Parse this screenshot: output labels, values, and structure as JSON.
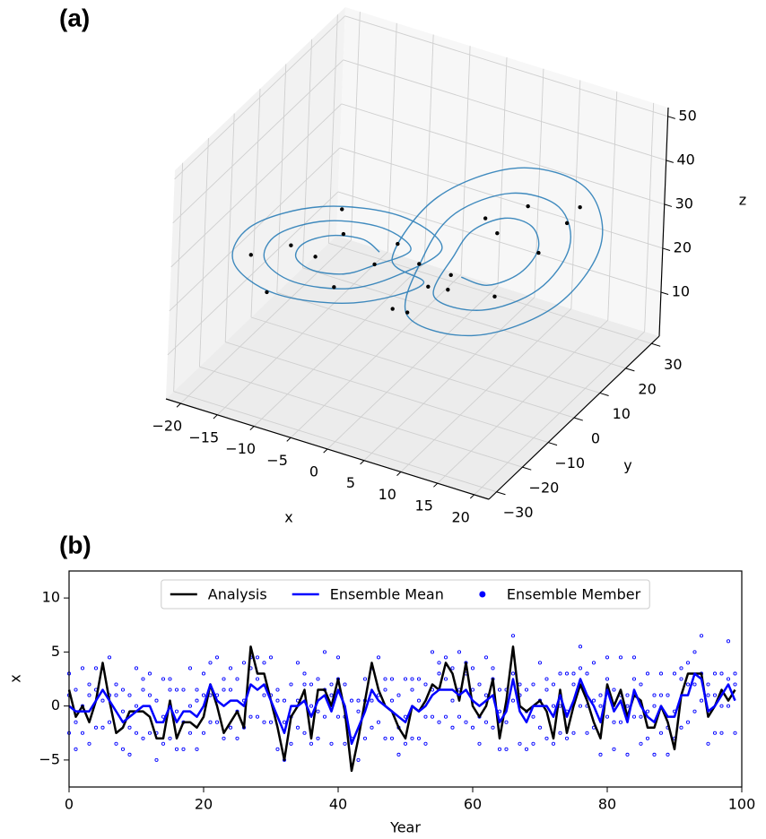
{
  "chart_data": [
    {
      "type": "3d",
      "label": "(a)",
      "xlabel": "x",
      "ylabel": "y",
      "zlabel": "z",
      "xlim": [
        -22,
        22
      ],
      "ylim": [
        -33,
        33
      ],
      "zlim": [
        0,
        52
      ],
      "xticks": [
        {
          "value": -20,
          "label": "−20"
        },
        {
          "value": -15,
          "label": "−15"
        },
        {
          "value": -10,
          "label": "−10"
        },
        {
          "value": -5,
          "label": "−5"
        },
        0,
        5,
        10,
        15,
        20
      ],
      "yticks": [
        {
          "value": -30,
          "label": "−30"
        },
        {
          "value": -20,
          "label": "−20"
        },
        {
          "value": -10,
          "label": "−10"
        },
        0,
        10,
        20,
        30
      ],
      "zticks": [
        10,
        20,
        30,
        40,
        50
      ],
      "series": [
        {
          "type": "line",
          "color": "#1f77b4",
          "x": [
            -4,
            -5.2,
            -8,
            -10.8,
            -12,
            -10.8,
            -8,
            -5.2,
            -1,
            -3,
            -8,
            -13,
            -15,
            -13,
            -8,
            -3,
            2,
            -0.9,
            -8,
            -15.1,
            -18,
            -15.1,
            -8,
            -0.9,
            -2,
            0.9,
            8,
            15.1,
            18,
            15.1,
            8,
            0.9,
            1,
            3,
            8,
            13,
            15,
            13,
            8,
            3,
            4,
            5.2,
            8,
            10.8,
            12,
            10.8,
            8,
            5.2
          ],
          "y": [
            -3.2,
            -6.6,
            -10.9,
            -13.4,
            -12.8,
            -9.4,
            -5.1,
            -2.6,
            0.4,
            -5.6,
            -13,
            -17.5,
            -16.4,
            -10.4,
            -3,
            1.5,
            4,
            -4.6,
            -15.2,
            -21.6,
            -20,
            -11.4,
            -0.8,
            5.6,
            -4,
            4.6,
            15.2,
            21.6,
            20,
            11.4,
            0.8,
            -5.6,
            -0.4,
            5.6,
            13,
            17.5,
            16.4,
            10.4,
            3,
            -1.5,
            3.2,
            6.6,
            10.9,
            13.4,
            12.8,
            9.4,
            5.1,
            2.6
          ],
          "z": [
            26,
            30.2,
            32,
            30.2,
            26,
            21.8,
            20,
            21.8,
            26,
            33.4,
            36.5,
            33.4,
            26,
            18.6,
            15.5,
            18.6,
            26,
            36.6,
            41,
            36.6,
            26,
            15.4,
            11,
            15.4,
            26,
            36.6,
            41,
            36.6,
            26,
            15.4,
            11,
            15.4,
            26,
            33.4,
            36.5,
            33.4,
            26,
            18.6,
            15.5,
            18.6,
            26,
            30.2,
            32,
            30.2,
            26,
            21.8,
            20,
            21.8
          ]
        },
        {
          "type": "scatter",
          "color": "#000000",
          "x": [
            -12,
            -5,
            -14,
            -9,
            -3,
            -16,
            -7,
            -11,
            -2,
            -1,
            6,
            10,
            14,
            4,
            9,
            12,
            2,
            0,
            7,
            15,
            -6,
            3
          ],
          "y": [
            -15,
            -2,
            -18,
            -6,
            1,
            -19,
            -10,
            -8,
            -3,
            0,
            9,
            14,
            18,
            2,
            5,
            13,
            -1,
            1,
            11,
            20,
            -12,
            4
          ],
          "z": [
            30,
            22,
            20,
            17,
            26,
            28,
            38,
            24,
            14,
            12,
            32,
            34,
            30,
            22,
            18,
            25,
            20,
            23,
            28,
            33,
            34,
            17
          ]
        }
      ]
    },
    {
      "type": "line",
      "label": "(b)",
      "xlabel": "Year",
      "ylabel": "x",
      "xlim": [
        0,
        100
      ],
      "ylim": [
        -7.5,
        12.5
      ],
      "xticks": [
        0,
        20,
        40,
        60,
        80,
        100
      ],
      "yticks": [
        {
          "value": -5,
          "label": "−5"
        },
        0,
        5,
        10
      ],
      "legend": "upper center",
      "x": [
        0,
        1,
        2,
        3,
        4,
        5,
        6,
        7,
        8,
        9,
        10,
        11,
        12,
        13,
        14,
        15,
        16,
        17,
        18,
        19,
        20,
        21,
        22,
        23,
        24,
        25,
        26,
        27,
        28,
        29,
        30,
        31,
        32,
        33,
        34,
        35,
        36,
        37,
        38,
        39,
        40,
        41,
        42,
        43,
        44,
        45,
        46,
        47,
        48,
        49,
        50,
        51,
        52,
        53,
        54,
        55,
        56,
        57,
        58,
        59,
        60,
        61,
        62,
        63,
        64,
        65,
        66,
        67,
        68,
        69,
        70,
        71,
        72,
        73,
        74,
        75,
        76,
        77,
        78,
        79,
        80,
        81,
        82,
        83,
        84,
        85,
        86,
        87,
        88,
        89,
        90,
        91,
        92,
        93,
        94,
        95,
        96,
        97,
        98,
        99
      ],
      "series": [
        {
          "name": "Analysis",
          "type": "line",
          "color": "#000000",
          "values": [
            1.5,
            -1,
            0,
            -1.5,
            0.5,
            4,
            0.5,
            -2.5,
            -2,
            -0.5,
            -0.5,
            -0.5,
            -1,
            -3,
            -3,
            0.5,
            -3,
            -1.5,
            -1.5,
            -2,
            -1,
            2,
            0,
            -2.5,
            -1.5,
            -0.5,
            -2,
            5.5,
            3,
            3,
            0.5,
            -2,
            -5,
            -1,
            0,
            1.5,
            -3,
            1.5,
            1.5,
            0,
            2.5,
            -0.5,
            -6,
            -3,
            0.5,
            4,
            1.5,
            0,
            -0.5,
            -2,
            -3,
            0,
            -0.5,
            0.5,
            2,
            1.5,
            4,
            3,
            0.5,
            4,
            0,
            -1,
            0,
            2.5,
            -3,
            0.5,
            5.5,
            0,
            -0.5,
            0,
            0.5,
            -0.5,
            -3,
            1.5,
            -2.5,
            0,
            2,
            0.5,
            -1.5,
            -3,
            2,
            0,
            1.5,
            -1,
            1,
            0.5,
            -2,
            -2,
            0,
            -1.5,
            -4,
            1,
            3,
            3,
            3,
            -1,
            0,
            1.5,
            0.5,
            1.5
          ]
        },
        {
          "name": "Ensemble Mean",
          "type": "line",
          "color": "#0000ff",
          "values": [
            0,
            -0.5,
            -0.5,
            -0.5,
            0.5,
            1.5,
            0.5,
            -0.5,
            -1.5,
            -1,
            -0.5,
            0,
            0,
            -1.5,
            -1.5,
            0,
            -1.5,
            -0.5,
            -0.5,
            -1,
            0,
            2,
            0.5,
            0,
            0.5,
            0.5,
            0,
            2,
            1.5,
            2,
            0.5,
            -1,
            -2.5,
            0,
            0,
            0.5,
            -1,
            0.5,
            1,
            -0.5,
            1.5,
            0,
            -3.5,
            -2,
            -0.5,
            1.5,
            0.5,
            0,
            -0.5,
            -1,
            -1.5,
            0,
            -0.5,
            0,
            1,
            1.5,
            1.5,
            1.5,
            1,
            1.5,
            0.5,
            0,
            0.5,
            1,
            -1.5,
            -0.5,
            2.5,
            -0.5,
            -1.5,
            0,
            0,
            0,
            -1,
            1,
            -1,
            0.5,
            2.5,
            1,
            0,
            -1.5,
            1.5,
            -0.5,
            0.5,
            -1.5,
            1.5,
            0,
            -1,
            -1.5,
            0,
            -1,
            -1,
            1,
            1,
            3,
            2.5,
            -0.5,
            0,
            1,
            2,
            0.5
          ]
        },
        {
          "name": "Ensemble Member",
          "type": "scatter",
          "color": "#0000ff",
          "values": [
            [
              3,
              -2.5,
              1
            ],
            [
              1.5,
              -4,
              -1.5
            ],
            [
              3.5,
              -2.5,
              0
            ],
            [
              2,
              -3.5,
              1
            ],
            [
              3.5,
              -2,
              1.5
            ],
            [
              3.5,
              -2,
              0.5
            ],
            [
              4.5,
              -1.5,
              1
            ],
            [
              2,
              -3.5,
              1
            ],
            [
              1.5,
              -4,
              -0.5
            ],
            [
              1,
              -4.5,
              -2
            ],
            [
              3.5,
              -2.5,
              0
            ],
            [
              2.5,
              -3,
              1.5
            ],
            [
              3,
              -2.5,
              1
            ],
            [
              0.5,
              -5,
              -2.5
            ],
            [
              2.5,
              -3.5,
              -1
            ],
            [
              2.5,
              -3,
              1.5
            ],
            [
              1.5,
              -4,
              -0.5
            ],
            [
              1.5,
              -4,
              -1.5
            ],
            [
              3.5,
              -2.5,
              0
            ],
            [
              1.5,
              -4,
              0.5
            ],
            [
              3,
              -2.5,
              1
            ],
            [
              4,
              -1.5,
              1
            ],
            [
              4.5,
              -1.5,
              1
            ],
            [
              2.5,
              -3,
              1.5
            ],
            [
              3.5,
              -2,
              1.5
            ],
            [
              2.5,
              -3,
              -0.5
            ],
            [
              4,
              -2,
              0.5
            ],
            [
              4.5,
              -1,
              3.5
            ],
            [
              4.5,
              -1,
              2.5
            ],
            [
              4,
              -1.5,
              1
            ],
            [
              4.5,
              -1.5,
              1
            ],
            [
              1.5,
              -4,
              0.5
            ],
            [
              0.5,
              -5,
              -1.5
            ],
            [
              2,
              -3.5,
              -1
            ],
            [
              4,
              -2,
              0.5
            ],
            [
              3,
              -2.5,
              2
            ],
            [
              2,
              -3.5,
              0
            ],
            [
              2.5,
              -3,
              -0.5
            ],
            [
              5,
              -1,
              1.5
            ],
            [
              2,
              -3.5,
              1
            ],
            [
              4.5,
              -1,
              2.5
            ],
            [
              2,
              -3.5,
              -1
            ],
            [
              0.5,
              -5.5,
              -3
            ],
            [
              0.5,
              -5,
              -0.5
            ],
            [
              2.5,
              -3,
              0.5
            ],
            [
              3.5,
              -2,
              0.5
            ],
            [
              4.5,
              -1.5,
              1
            ],
            [
              2.5,
              -3,
              1.5
            ],
            [
              2.5,
              -3,
              0.5
            ],
            [
              1,
              -4.5,
              -2
            ],
            [
              2.5,
              -3.5,
              -1
            ],
            [
              2.5,
              -3,
              1.5
            ],
            [
              2.5,
              -3,
              0.5
            ],
            [
              2,
              -3.5,
              -1
            ],
            [
              5,
              -1,
              1.5
            ],
            [
              4,
              -1.5,
              3
            ],
            [
              4.5,
              -1,
              2.5
            ],
            [
              3.5,
              -2,
              0.5
            ],
            [
              5,
              -1,
              1.5
            ],
            [
              4,
              -1.5,
              3
            ],
            [
              3.5,
              -2,
              1.5
            ],
            [
              2,
              -3.5,
              -1
            ],
            [
              4.5,
              -1.5,
              1
            ],
            [
              3.5,
              -2,
              2.5
            ],
            [
              1.5,
              -4,
              -0.5
            ],
            [
              1.5,
              -4,
              -1.5
            ],
            [
              6.5,
              0.5,
              3
            ],
            [
              2,
              -3.5,
              1
            ],
            [
              1.5,
              -4,
              -0.5
            ],
            [
              2,
              -3.5,
              -1
            ],
            [
              4,
              -2,
              0.5
            ],
            [
              2.5,
              -3,
              1.5
            ],
            [
              2,
              -3.5,
              0
            ],
            [
              3,
              -2.5,
              0
            ],
            [
              3,
              -3,
              -0.5
            ],
            [
              3,
              -2.5,
              2
            ],
            [
              5.5,
              0,
              3.5
            ],
            [
              3,
              -2.5,
              0
            ],
            [
              4,
              -2,
              0.5
            ],
            [
              1,
              -4.5,
              0
            ],
            [
              4.5,
              -1,
              2.5
            ],
            [
              1.5,
              -4,
              -1.5
            ],
            [
              4.5,
              -1.5,
              1
            ],
            [
              1,
              -4.5,
              0
            ],
            [
              4.5,
              -1,
              2.5
            ],
            [
              2,
              -3.5,
              -1
            ],
            [
              3,
              -3,
              -0.5
            ],
            [
              1,
              -4.5,
              0
            ],
            [
              3,
              -2.5,
              1
            ],
            [
              1,
              -4.5,
              -2
            ],
            [
              3,
              -3,
              -0.5
            ],
            [
              3.5,
              -2,
              2.5
            ],
            [
              4,
              -1.5,
              2
            ],
            [
              5,
              -0.5,
              2
            ],
            [
              6.5,
              0.5,
              3
            ],
            [
              2,
              -3.5,
              1
            ],
            [
              3,
              -2.5,
              1
            ],
            [
              3,
              -2.5,
              0
            ],
            [
              6,
              0,
              2.5
            ],
            [
              3,
              -2.5,
              2
            ]
          ]
        }
      ]
    }
  ]
}
